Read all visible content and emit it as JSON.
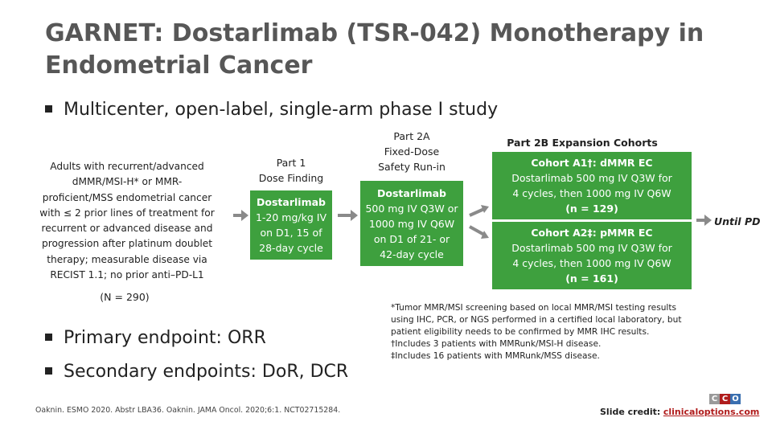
{
  "title": {
    "line1": "GARNET: Dostarlimab (TSR-042) Monotherapy in",
    "line2": "Endometrial Cancer"
  },
  "bullets": {
    "study_design": "Multicenter, open-label, single-arm phase I study",
    "primary": "Primary endpoint: ORR",
    "secondary": "Secondary endpoints: DoR, DCR"
  },
  "population": {
    "lines": [
      "Adults with recurrent/advanced",
      "dMMR/MSI-H* or MMR-",
      "proficient/MSS endometrial cancer",
      "with ≤ 2 prior lines of treatment for",
      "recurrent or advanced disease and",
      "progression after platinum doublet",
      "therapy; measurable disease via",
      "RECIST 1.1; no prior anti–PD-L1"
    ],
    "n_total": "(N = 290)"
  },
  "part1": {
    "label": [
      "Part 1",
      "Dose Finding"
    ],
    "box": [
      "Dostarlimab",
      "1-20 mg/kg IV",
      "on D1, 15 of",
      "28-day cycle"
    ]
  },
  "part2a": {
    "label": [
      "Part 2A",
      "Fixed-Dose",
      "Safety Run-in"
    ],
    "box": [
      "Dostarlimab",
      "500 mg IV Q3W or",
      "1000 mg IV Q6W",
      "on D1 of 21- or",
      "42-day cycle"
    ]
  },
  "part2b": {
    "label": "Part 2B Expansion Cohorts",
    "cohort_a1": {
      "title": "Cohort A1†: dMMR EC",
      "lines": [
        "Dostarlimab 500 mg IV Q3W for",
        "4 cycles, then 1000 mg IV Q6W",
        "(n = 129)"
      ]
    },
    "cohort_a2": {
      "title": "Cohort A2‡: pMMR EC",
      "lines": [
        "Dostarlimab 500 mg IV Q3W for",
        "4 cycles, then 1000 mg IV Q6W",
        "(n = 161)"
      ]
    }
  },
  "until_pd": "Until PD",
  "footnotes": [
    "*Tumor MMR/MSI screening based on local MMR/MSI testing results",
    "using IHC, PCR, or NGS performed in a certified local laboratory, but",
    "patient eligibility needs to be confirmed by MMR IHC results.",
    "†Includes 3 patients with MMRunk/MSI-H disease.",
    "‡Includes 16 patients with MMRunk/MSS disease."
  ],
  "citation": "Oaknin. ESMO 2020. Abstr LBA36. Oaknin. JAMA Oncol. 2020;6:1. NCT02715284.",
  "credit": {
    "label": "Slide credit:",
    "link": "clinicaloptions.com"
  },
  "logo": {
    "letters": [
      "C",
      "C",
      "O"
    ],
    "colors": [
      "#9a9a9a",
      "#b01c1c",
      "#3a6fb0"
    ]
  },
  "colors": {
    "box_green": "#3ea03e",
    "arrow_gray": "#8a8a8a",
    "title_gray": "#575757",
    "link_red": "#b01c1c"
  }
}
